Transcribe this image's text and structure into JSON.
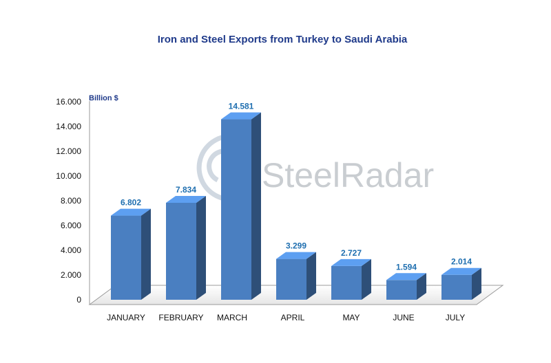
{
  "chart_data": {
    "type": "bar",
    "title": "Iron and Steel Exports from Turkey to Saudi Arabia",
    "unit_label": "Billion $",
    "categories": [
      "JANUARY",
      "FEBRUARY",
      "MARCH",
      "APRIL",
      "MAY",
      "JUNE",
      "JULY"
    ],
    "values": [
      6.802,
      7.834,
      14.581,
      3.299,
      2.727,
      1.594,
      2.014
    ],
    "value_labels": [
      "6.802",
      "7.834",
      "14.581",
      "3.299",
      "2.727",
      "1.594",
      "2.014"
    ],
    "yticks": [
      "0",
      "2.000",
      "4.000",
      "6.000",
      "8.000",
      "10.000",
      "12.000",
      "14.000",
      "16.000"
    ],
    "ylim": [
      0,
      16
    ],
    "grid": false,
    "bar_color": "#4a7fc1"
  },
  "watermark": {
    "part1": "Steel",
    "part2": "Radar"
  }
}
